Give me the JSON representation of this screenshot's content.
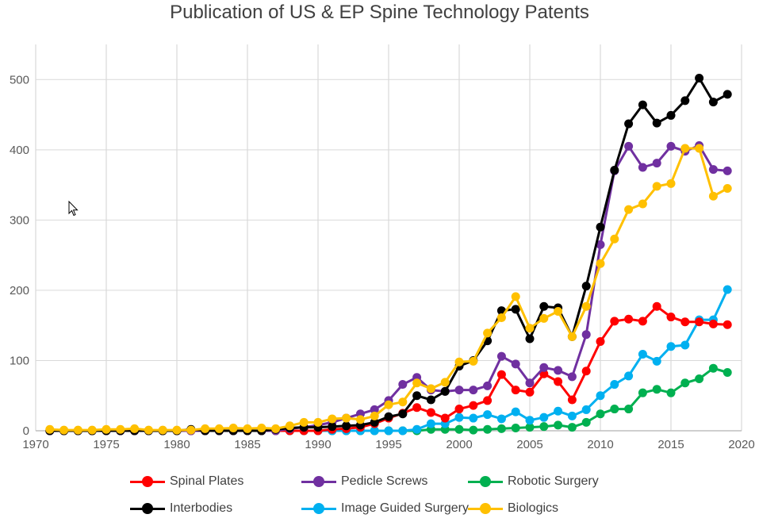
{
  "chart_data": {
    "type": "line",
    "title": "Publication of US & EP Spine Technology Patents",
    "xlabel": "",
    "ylabel": "",
    "xlim": [
      1970,
      2020
    ],
    "ylim": [
      0,
      550
    ],
    "xticks": [
      1970,
      1975,
      1980,
      1985,
      1990,
      1995,
      2000,
      2005,
      2010,
      2015,
      2020
    ],
    "yticks": [
      0,
      100,
      200,
      300,
      400,
      500
    ],
    "x": [
      1971,
      1972,
      1973,
      1974,
      1975,
      1976,
      1977,
      1978,
      1979,
      1980,
      1981,
      1982,
      1983,
      1984,
      1985,
      1986,
      1987,
      1988,
      1989,
      1990,
      1991,
      1992,
      1993,
      1994,
      1995,
      1996,
      1997,
      1998,
      1999,
      2000,
      2001,
      2002,
      2003,
      2004,
      2005,
      2006,
      2007,
      2008,
      2009,
      2010,
      2011,
      2012,
      2013,
      2014,
      2015,
      2016,
      2017,
      2018,
      2019
    ],
    "series": [
      {
        "name": "Spinal Plates",
        "color": "#ff0000",
        "values": [
          0,
          0,
          0,
          0,
          0,
          0,
          0,
          0,
          0,
          0,
          0,
          0,
          0,
          0,
          0,
          0,
          0,
          0,
          0,
          0,
          2,
          3,
          5,
          10,
          18,
          25,
          33,
          26,
          18,
          31,
          36,
          43,
          80,
          58,
          55,
          81,
          70,
          44,
          85,
          127,
          156,
          159,
          156,
          177,
          162,
          155,
          155,
          152,
          151
        ]
      },
      {
        "name": "Pedicle Screws",
        "color": "#7030a0",
        "values": [
          0,
          0,
          0,
          0,
          0,
          0,
          0,
          0,
          0,
          0,
          0,
          0,
          0,
          0,
          0,
          0,
          0,
          3,
          5,
          8,
          12,
          18,
          24,
          30,
          43,
          66,
          76,
          58,
          56,
          58,
          58,
          64,
          106,
          95,
          68,
          90,
          86,
          77,
          137,
          265,
          370,
          405,
          375,
          381,
          405,
          398,
          406,
          372,
          370
        ]
      },
      {
        "name": "Robotic Surgery",
        "color": "#00b050",
        "values": [
          0,
          0,
          0,
          0,
          0,
          0,
          0,
          0,
          0,
          0,
          0,
          0,
          0,
          0,
          0,
          0,
          0,
          0,
          0,
          0,
          0,
          0,
          0,
          0,
          0,
          0,
          0,
          2,
          2,
          2,
          1,
          2,
          3,
          4,
          5,
          6,
          8,
          5,
          12,
          24,
          31,
          31,
          54,
          59,
          54,
          68,
          74,
          89,
          83
        ]
      },
      {
        "name": "Interbodies",
        "color": "#000000",
        "values": [
          0,
          0,
          0,
          0,
          0,
          0,
          0,
          0,
          0,
          0,
          2,
          0,
          0,
          0,
          0,
          0,
          2,
          4,
          5,
          5,
          6,
          7,
          8,
          12,
          20,
          24,
          50,
          44,
          56,
          92,
          100,
          128,
          171,
          173,
          131,
          177,
          175,
          134,
          206,
          290,
          371,
          437,
          464,
          438,
          449,
          470,
          502,
          468,
          479
        ]
      },
      {
        "name": "Image Guided Surgery",
        "color": "#00b0f0",
        "values": [
          0,
          0,
          0,
          0,
          0,
          0,
          0,
          0,
          0,
          0,
          0,
          0,
          0,
          0,
          0,
          0,
          0,
          0,
          0,
          0,
          0,
          0,
          0,
          0,
          0,
          0,
          2,
          10,
          10,
          19,
          18,
          23,
          17,
          27,
          15,
          19,
          28,
          21,
          30,
          50,
          66,
          78,
          109,
          99,
          120,
          122,
          158,
          158,
          201
        ]
      },
      {
        "name": "Biologics",
        "color": "#ffc000",
        "values": [
          2,
          1,
          1,
          1,
          2,
          2,
          3,
          1,
          1,
          1,
          1,
          3,
          3,
          4,
          3,
          4,
          3,
          7,
          12,
          12,
          17,
          18,
          16,
          21,
          37,
          41,
          68,
          60,
          69,
          98,
          99,
          139,
          161,
          191,
          146,
          160,
          170,
          134,
          177,
          238,
          273,
          315,
          323,
          348,
          352,
          402,
          402,
          334,
          345
        ]
      }
    ]
  }
}
